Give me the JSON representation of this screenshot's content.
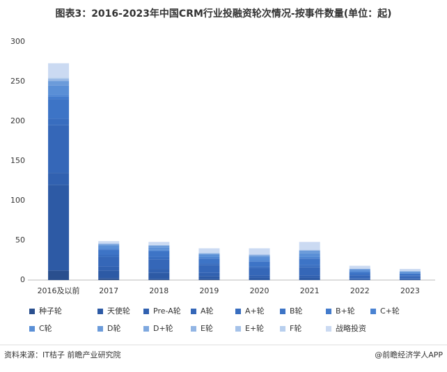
{
  "chart_data": {
    "type": "stacked-bar",
    "title": "图表3：2016-2023年中国CRM行业投融资轮次情况-按事件数量(单位：起)",
    "categories": [
      "2016及以前",
      "2017",
      "2018",
      "2019",
      "2020",
      "2021",
      "2022",
      "2023"
    ],
    "series": [
      {
        "name": "种子轮",
        "color": "#2a4f8e",
        "values": [
          12,
          2,
          1,
          1,
          0,
          0,
          0,
          0
        ]
      },
      {
        "name": "天使轮",
        "color": "#2d5aa5",
        "values": [
          108,
          10,
          8,
          4,
          3,
          3,
          1,
          1
        ]
      },
      {
        "name": "Pre-A轮",
        "color": "#3161b0",
        "values": [
          15,
          5,
          5,
          4,
          3,
          3,
          1,
          1
        ]
      },
      {
        "name": "A轮",
        "color": "#3567b8",
        "values": [
          60,
          12,
          12,
          10,
          9,
          10,
          4,
          3
        ]
      },
      {
        "name": "A+轮",
        "color": "#386dbf",
        "values": [
          8,
          3,
          3,
          2,
          2,
          3,
          1,
          1
        ]
      },
      {
        "name": "B轮",
        "color": "#3d74c6",
        "values": [
          25,
          6,
          7,
          6,
          6,
          8,
          3,
          2
        ]
      },
      {
        "name": "B+轮",
        "color": "#437bcc",
        "values": [
          3,
          1,
          1,
          1,
          1,
          1,
          0,
          0
        ]
      },
      {
        "name": "C+轮",
        "color": "#4a83d2",
        "values": [
          2,
          1,
          1,
          1,
          1,
          1,
          1,
          0
        ]
      },
      {
        "name": "C轮",
        "color": "#5a8fd6",
        "values": [
          12,
          3,
          3,
          3,
          4,
          5,
          2,
          2
        ]
      },
      {
        "name": "D轮",
        "color": "#6b9bda",
        "values": [
          5,
          2,
          2,
          1,
          2,
          3,
          1,
          1
        ]
      },
      {
        "name": "D+轮",
        "color": "#7ea8df",
        "values": [
          1,
          0,
          0,
          0,
          0,
          0,
          0,
          0
        ]
      },
      {
        "name": "E轮",
        "color": "#92b5e4",
        "values": [
          2,
          1,
          1,
          1,
          1,
          1,
          0,
          0
        ]
      },
      {
        "name": "E+轮",
        "color": "#a5c2e9",
        "values": [
          1,
          0,
          0,
          0,
          0,
          0,
          0,
          0
        ]
      },
      {
        "name": "F轮",
        "color": "#b8cfee",
        "values": [
          1,
          0,
          0,
          0,
          0,
          0,
          0,
          0
        ]
      },
      {
        "name": "战略投资",
        "color": "#cbdaf2",
        "values": [
          18,
          3,
          4,
          6,
          8,
          10,
          4,
          3
        ]
      }
    ],
    "ylim": [
      0,
      300
    ],
    "yticks": [
      0,
      50,
      100,
      150,
      200,
      250,
      300
    ],
    "grid": false
  },
  "footer": {
    "source": "资料来源：IT桔子 前瞻产业研究院",
    "brand": "@前瞻经济学人APP"
  }
}
